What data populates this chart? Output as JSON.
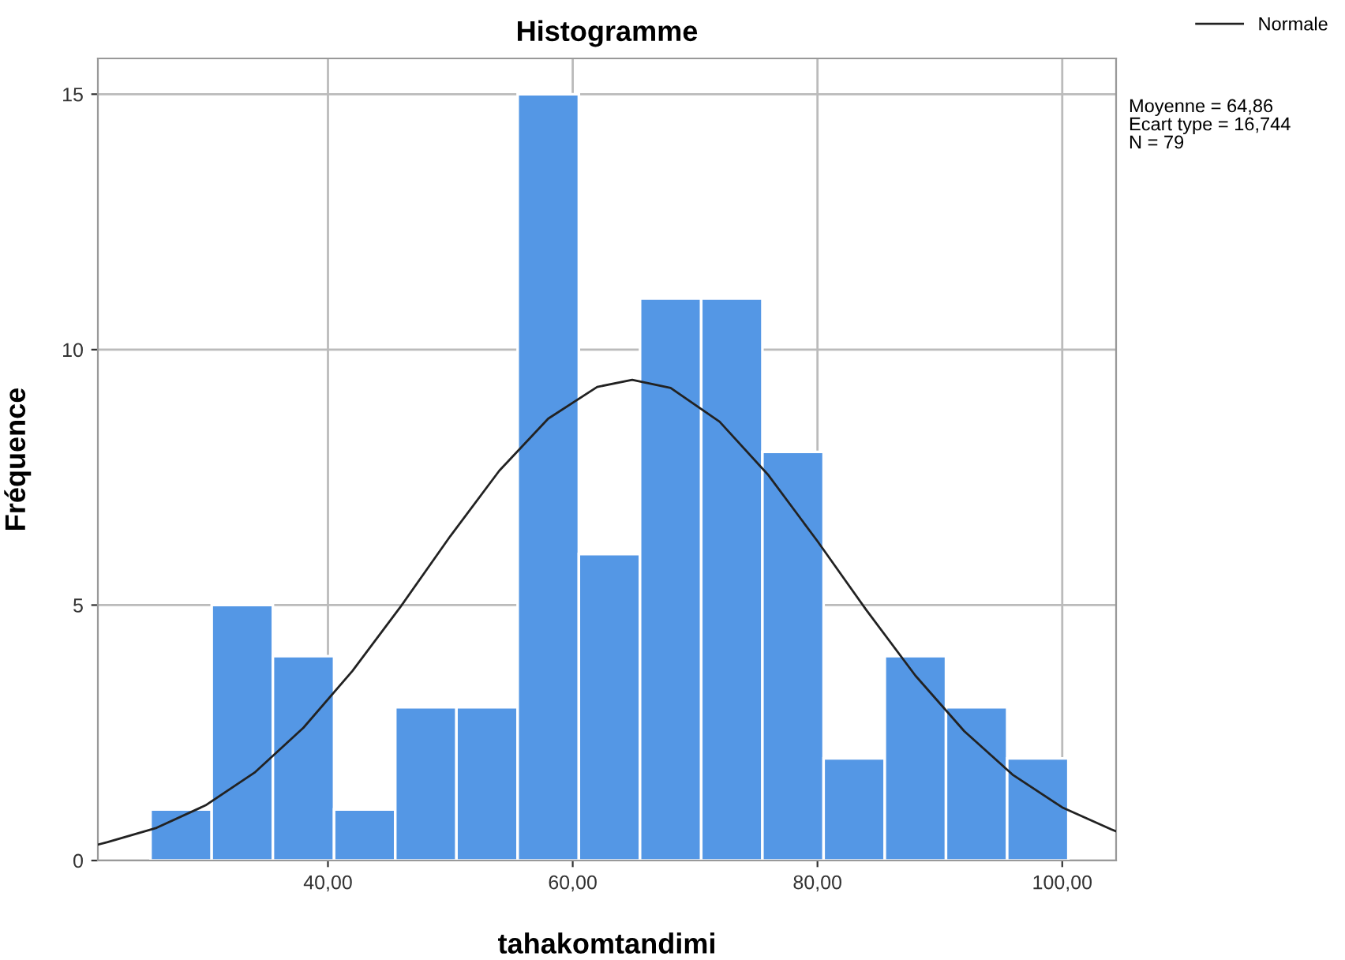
{
  "chart_data": {
    "type": "histogram",
    "title": "Histogramme",
    "xlabel": "tahakomtandimi",
    "ylabel": "Fréquence",
    "series": [
      {
        "color": "#5497e5",
        "bins": [
          25.5,
          30.5,
          35.5,
          40.5,
          45.5,
          50.5,
          55.5,
          60.5,
          65.5,
          70.5,
          75.5,
          80.5,
          85.5,
          90.5,
          95.5,
          100.5
        ],
        "values": [
          1,
          5,
          4,
          1,
          3,
          3,
          15,
          6,
          11,
          11,
          8,
          2,
          4,
          3,
          2
        ]
      },
      {
        "type": "line",
        "name": "Normale",
        "color": "#222222",
        "x": [
          21.2,
          22,
          26,
          30,
          34,
          38,
          42,
          46,
          50,
          54,
          58,
          62,
          64.86,
          68,
          72,
          76,
          80,
          84,
          88,
          92,
          96,
          100,
          104,
          104.4
        ],
        "values": [
          0.31,
          0.36,
          0.64,
          1.08,
          1.72,
          2.6,
          3.71,
          4.99,
          6.35,
          7.63,
          8.65,
          9.27,
          9.41,
          9.25,
          8.59,
          7.54,
          6.25,
          4.9,
          3.62,
          2.53,
          1.67,
          1.04,
          0.61,
          0.57
        ]
      }
    ],
    "xlim": [
      21.2,
      104.4
    ],
    "ylim": [
      0,
      15.7
    ],
    "xticks": [
      {
        "value": 40,
        "label": "40,00"
      },
      {
        "value": 60,
        "label": "60,00"
      },
      {
        "value": 80,
        "label": "80,00"
      },
      {
        "value": 100,
        "label": "100,00"
      }
    ],
    "yticks": [
      0,
      5,
      10,
      15
    ],
    "grid": true,
    "legend": "top right",
    "annotations": [
      "Moyenne = 64,86",
      "Ecart type = 16,744",
      "N = 79"
    ]
  }
}
